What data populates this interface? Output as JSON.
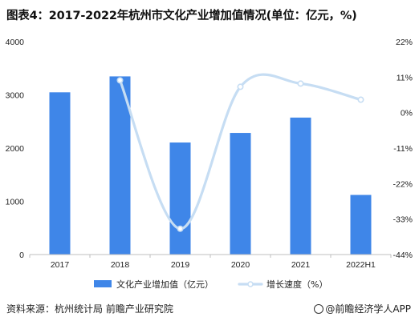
{
  "title": "图表4：2017-2022年杭州市文化产业增加值情况(单位：亿元，%)",
  "footer": {
    "source": "资料来源：杭州统计局 前瞻产业研究院",
    "brand": "@前瞻经济学人APP"
  },
  "colors": {
    "bar": "#3f86e8",
    "line": "#c6ddf3",
    "grid": "#e3e3e3"
  },
  "chart_data": {
    "type": "bar",
    "categories": [
      "2017",
      "2018",
      "2019",
      "2020",
      "2021",
      "2022H1"
    ],
    "series": [
      {
        "name": "文化产业增加值（亿元）",
        "type": "bar",
        "axis": "left",
        "values": [
          3048,
          3347,
          2105,
          2285,
          2573,
          1120
        ]
      },
      {
        "name": "增长速度（%）",
        "type": "line",
        "axis": "right",
        "values": [
          null,
          10.0,
          -36.0,
          8.0,
          9.0,
          4.0
        ]
      }
    ],
    "y_left": {
      "min": 0,
      "max": 4000,
      "ticks": [
        0,
        1000,
        2000,
        3000,
        4000
      ],
      "tick_labels": [
        "0",
        "1000",
        "2000",
        "3000",
        "4000"
      ]
    },
    "y_right": {
      "min": -44,
      "max": 22,
      "ticks": [
        -44,
        -33,
        -22,
        -11,
        0,
        11,
        22
      ],
      "tick_labels": [
        "-44%",
        "-33%",
        "-22%",
        "-11%",
        "0%",
        "11%",
        "22%"
      ]
    },
    "grid": false,
    "legend": "bottom"
  }
}
